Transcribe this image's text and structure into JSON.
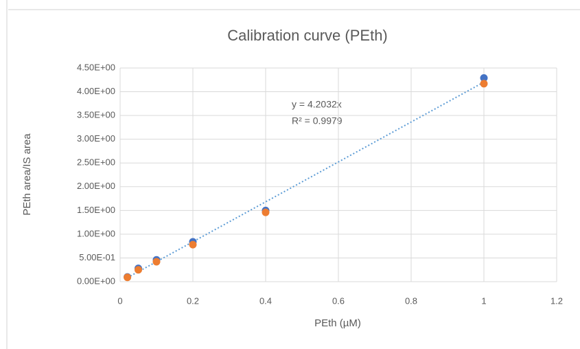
{
  "chart_data": {
    "type": "scatter",
    "title": "Calibration curve (PEth)",
    "x_label": "PEth (µM)",
    "y_label": "PEth area/IS area",
    "x": [
      0.02,
      0.05,
      0.1,
      0.2,
      0.4,
      1
    ],
    "series": [
      {
        "color": "#4472c4",
        "values": [
          0.1,
          0.28,
          0.46,
          0.84,
          1.5,
          4.29
        ]
      },
      {
        "color": "#ed7d31",
        "values": [
          0.09,
          0.25,
          0.42,
          0.78,
          1.46,
          4.17
        ]
      }
    ],
    "trendline": {
      "slope": 4.2032,
      "color": "#5b9bd5",
      "label": "y = 4.2032x",
      "r2_label": "R² = 0.9979"
    },
    "xlim": [
      0,
      1.2
    ],
    "xticks": [
      0,
      0.2,
      0.4,
      0.6,
      0.8,
      1,
      1.2
    ],
    "ylim": [
      0,
      4.5
    ],
    "yticks": [
      {
        "value": 0,
        "label": "0.00E+00"
      },
      {
        "value": 0.5,
        "label": "5.00E-01"
      },
      {
        "value": 1,
        "label": "1.00E+00"
      },
      {
        "value": 1.5,
        "label": "1.50E+00"
      },
      {
        "value": 2,
        "label": "2.00E+00"
      },
      {
        "value": 2.5,
        "label": "2.50E+00"
      },
      {
        "value": 3,
        "label": "3.00E+00"
      },
      {
        "value": 3.5,
        "label": "3.50E+00"
      },
      {
        "value": 4,
        "label": "4.00E+00"
      },
      {
        "value": 4.5,
        "label": "4.50E+00"
      }
    ],
    "grid": true
  }
}
